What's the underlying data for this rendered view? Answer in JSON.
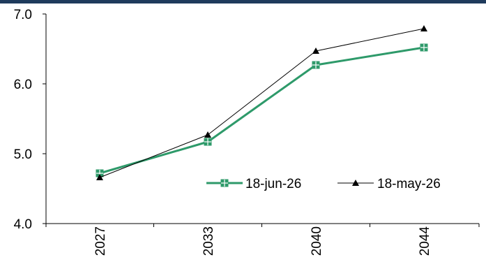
{
  "colors": {
    "top_band": "#1f3b5c",
    "axis": "#000000",
    "series_jun": "#2e9a6a",
    "series_may": "#000000"
  },
  "chart_data": {
    "type": "line",
    "categories": [
      "2027",
      "2033",
      "2040",
      "2044"
    ],
    "series": [
      {
        "name": "18-jun-26",
        "values": [
          4.72,
          5.17,
          6.27,
          6.52
        ],
        "marker": "square-plus",
        "color": "#2e9a6a"
      },
      {
        "name": "18-may-26",
        "values": [
          4.66,
          5.27,
          6.47,
          6.79
        ],
        "marker": "triangle",
        "color": "#000000"
      }
    ],
    "ylim": [
      4.0,
      7.0
    ],
    "yticks": [
      "4.0",
      "5.0",
      "6.0",
      "7.0"
    ],
    "grid": false,
    "legend": {
      "position": "lower-right-inside"
    }
  }
}
